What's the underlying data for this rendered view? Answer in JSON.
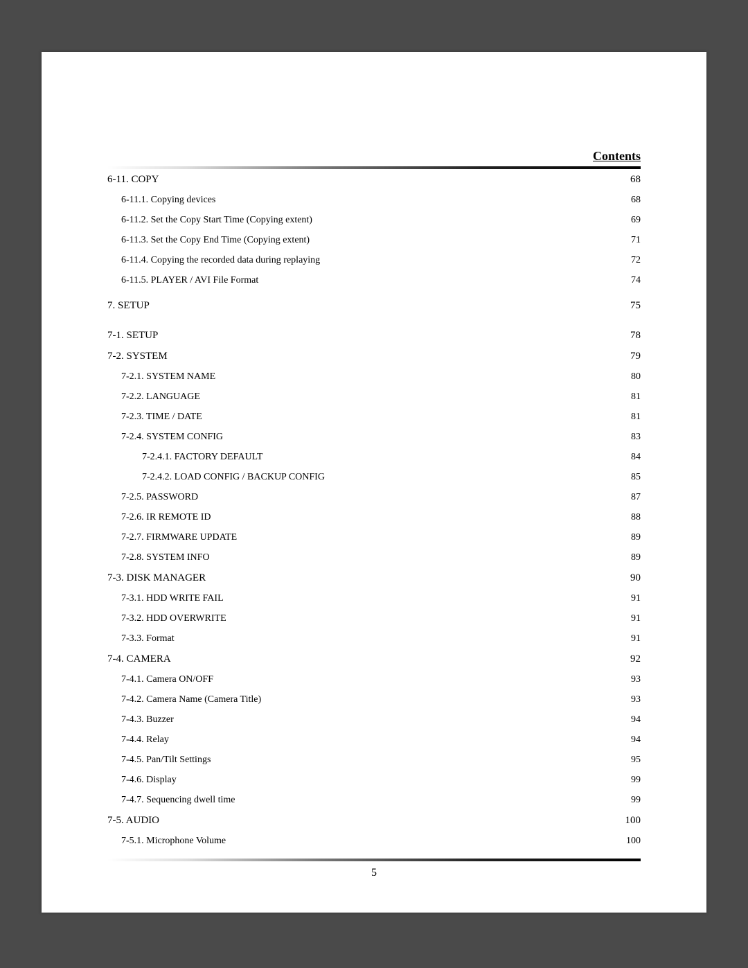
{
  "header": {
    "title": "Contents"
  },
  "footer": {
    "page_number": "5"
  },
  "toc": {
    "entries": [
      {
        "level": 1,
        "title": "6-11. COPY",
        "page": "68",
        "chapter": false
      },
      {
        "level": 2,
        "title": "6-11.1. Copying devices",
        "page": "68",
        "chapter": false
      },
      {
        "level": 2,
        "title": "6-11.2. Set the Copy Start Time (Copying extent)",
        "page": "69",
        "chapter": false
      },
      {
        "level": 2,
        "title": "6-11.3. Set the Copy End Time (Copying extent)",
        "page": "71",
        "chapter": false
      },
      {
        "level": 2,
        "title": "6-11.4. Copying the recorded data during replaying",
        "page": "72",
        "chapter": false
      },
      {
        "level": 2,
        "title": "6-11.5. PLAYER / AVI File Format",
        "page": "74",
        "chapter": false
      },
      {
        "level": 0,
        "title": "7. SETUP",
        "page": "75",
        "chapter": true
      },
      {
        "level": 1,
        "title": "7-1. SETUP",
        "page": "78",
        "chapter": false
      },
      {
        "level": 1,
        "title": "7-2. SYSTEM",
        "page": "79",
        "chapter": false
      },
      {
        "level": 2,
        "title": "7-2.1. SYSTEM NAME",
        "page": "80",
        "chapter": false
      },
      {
        "level": 2,
        "title": "7-2.2. LANGUAGE",
        "page": "81",
        "chapter": false
      },
      {
        "level": 2,
        "title": "7-2.3. TIME / DATE",
        "page": "81",
        "chapter": false
      },
      {
        "level": 2,
        "title": "7-2.4. SYSTEM CONFIG",
        "page": "83",
        "chapter": false
      },
      {
        "level": 3,
        "title": "7-2.4.1. FACTORY DEFAULT",
        "page": "84",
        "chapter": false
      },
      {
        "level": 3,
        "title": "7-2.4.2. LOAD CONFIG / BACKUP CONFIG",
        "page": "85",
        "chapter": false
      },
      {
        "level": 2,
        "title": "7-2.5. PASSWORD",
        "page": "87",
        "chapter": false
      },
      {
        "level": 2,
        "title": "7-2.6. IR REMOTE ID",
        "page": "88",
        "chapter": false
      },
      {
        "level": 2,
        "title": "7-2.7. FIRMWARE UPDATE",
        "page": "89",
        "chapter": false
      },
      {
        "level": 2,
        "title": "7-2.8. SYSTEM INFO",
        "page": "89",
        "chapter": false
      },
      {
        "level": 1,
        "title": "7-3. DISK MANAGER",
        "page": "90",
        "chapter": false
      },
      {
        "level": 2,
        "title": "7-3.1. HDD WRITE FAIL",
        "page": "91",
        "chapter": false
      },
      {
        "level": 2,
        "title": "7-3.2. HDD OVERWRITE",
        "page": "91",
        "chapter": false
      },
      {
        "level": 2,
        "title": "7-3.3. Format",
        "page": "91",
        "chapter": false
      },
      {
        "level": 1,
        "title": "7-4. CAMERA",
        "page": "92",
        "chapter": false
      },
      {
        "level": 2,
        "title": "7-4.1. Camera ON/OFF",
        "page": "93",
        "chapter": false
      },
      {
        "level": 2,
        "title": "7-4.2. Camera Name (Camera Title)",
        "page": "93",
        "chapter": false
      },
      {
        "level": 2,
        "title": "7-4.3. Buzzer",
        "page": "94",
        "chapter": false
      },
      {
        "level": 2,
        "title": "7-4.4. Relay",
        "page": "94",
        "chapter": false
      },
      {
        "level": 2,
        "title": "7-4.5. Pan/Tilt Settings",
        "page": "95",
        "chapter": false
      },
      {
        "level": 2,
        "title": "7-4.6. Display",
        "page": "99",
        "chapter": false
      },
      {
        "level": 2,
        "title": "7-4.7. Sequencing dwell time",
        "page": "99",
        "chapter": false
      },
      {
        "level": 1,
        "title": "7-5. AUDIO",
        "page": "100",
        "chapter": false
      },
      {
        "level": 2,
        "title": "7-5.1. Microphone Volume",
        "page": "100",
        "chapter": false
      }
    ]
  }
}
